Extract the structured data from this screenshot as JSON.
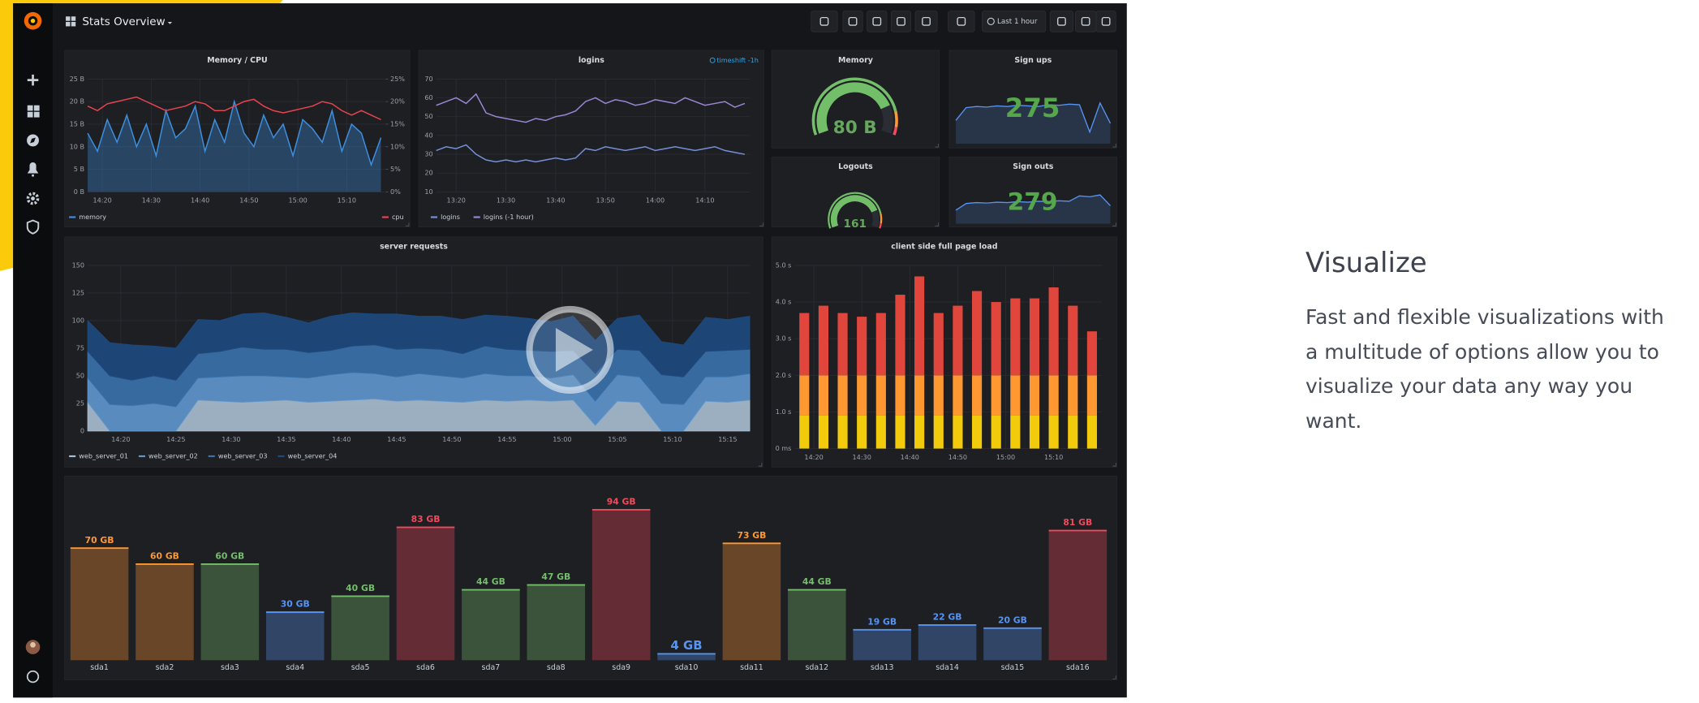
{
  "header": {
    "title": "Stats Overview",
    "time_range": "Last 1 hour"
  },
  "chart_data": [
    {
      "type": "line",
      "title": "Memory / CPU",
      "x": [
        "14:17",
        "14:19",
        "14:21",
        "14:23",
        "14:25",
        "14:27",
        "14:29",
        "14:31",
        "14:33",
        "14:35",
        "14:37",
        "14:39",
        "14:41",
        "14:43",
        "14:45",
        "14:47",
        "14:49",
        "14:51",
        "14:53",
        "14:55",
        "14:57",
        "14:59",
        "15:01",
        "15:03",
        "15:05",
        "15:07",
        "15:09",
        "15:11",
        "15:13",
        "15:15",
        "15:17"
      ],
      "xlim": [
        "14:17",
        "15:18"
      ],
      "xticks": [
        "14:20",
        "14:30",
        "14:40",
        "14:50",
        "15:00",
        "15:10"
      ],
      "ylim": [
        0,
        25
      ],
      "yticks": [
        {
          "value": 0,
          "label": "0 B"
        },
        {
          "value": 5,
          "label": "5 B"
        },
        {
          "value": 10,
          "label": "10 B"
        },
        {
          "value": 15,
          "label": "15 B"
        },
        {
          "value": 20,
          "label": "20 B"
        },
        {
          "value": 25,
          "label": "25 B"
        }
      ],
      "y2lim": [
        0,
        25
      ],
      "y2ticks": [
        {
          "value": 0,
          "label": "0%"
        },
        {
          "value": 5,
          "label": "5%"
        },
        {
          "value": 10,
          "label": "10%"
        },
        {
          "value": 15,
          "label": "15%"
        },
        {
          "value": 20,
          "label": "20%"
        },
        {
          "value": 25,
          "label": "25%"
        }
      ],
      "series": [
        {
          "name": "memory",
          "color": "#3d8fe0",
          "fill": true,
          "values": [
            13,
            9,
            16,
            11,
            17,
            10,
            15,
            8,
            18,
            12,
            14,
            19,
            9,
            16,
            11,
            20,
            13,
            10,
            17,
            12,
            15,
            8,
            16,
            14,
            11,
            18,
            9,
            15,
            13,
            6,
            12
          ]
        },
        {
          "name": "cpu",
          "color": "#e8434f",
          "axis": "y2",
          "values": [
            19,
            18,
            19.5,
            20,
            20.5,
            21,
            20,
            19,
            18,
            18.5,
            19,
            20,
            19.5,
            18,
            18,
            19,
            20,
            20.5,
            19,
            18,
            17.5,
            18,
            18.5,
            19,
            20,
            19.5,
            18,
            17,
            18,
            17,
            16
          ]
        }
      ]
    },
    {
      "type": "line",
      "title": "logins",
      "annotation": "timeshift -1h",
      "x": [
        "13:16",
        "13:18",
        "13:20",
        "13:22",
        "13:24",
        "13:26",
        "13:28",
        "13:30",
        "13:32",
        "13:34",
        "13:36",
        "13:38",
        "13:40",
        "13:42",
        "13:44",
        "13:46",
        "13:48",
        "13:50",
        "13:52",
        "13:54",
        "13:56",
        "13:58",
        "14:00",
        "14:02",
        "14:04",
        "14:06",
        "14:08",
        "14:10",
        "14:12",
        "14:14",
        "14:16",
        "14:18"
      ],
      "xlim": [
        "13:16",
        "14:19"
      ],
      "xticks": [
        "13:20",
        "13:30",
        "13:40",
        "13:50",
        "14:00",
        "14:10"
      ],
      "ylim": [
        10,
        70
      ],
      "yticks": [
        10,
        20,
        30,
        40,
        50,
        60,
        70
      ],
      "series": [
        {
          "name": "logins",
          "color": "#7590d8",
          "values": [
            32,
            34,
            33,
            35,
            30,
            27,
            26,
            27,
            26,
            27,
            26,
            27,
            28,
            27,
            28,
            33,
            32,
            34,
            33,
            32,
            33,
            34,
            32,
            33,
            34,
            33,
            32,
            33,
            34,
            32,
            31,
            30
          ]
        },
        {
          "name": "logins (-1 hour)",
          "color": "#9a86d4",
          "values": [
            56,
            58,
            60,
            57,
            62,
            52,
            50,
            49,
            48,
            47,
            49,
            48,
            50,
            51,
            53,
            58,
            60,
            57,
            59,
            58,
            56,
            57,
            59,
            58,
            57,
            60,
            58,
            56,
            57,
            58,
            55,
            57
          ]
        }
      ]
    },
    {
      "type": "gauge",
      "title": "Memory",
      "value": 80,
      "value_label": "80 B",
      "range": [
        0,
        100
      ],
      "thresholds": [
        {
          "value": 0,
          "color": "#73bf69"
        },
        {
          "value": 85,
          "color": "#ff9830"
        },
        {
          "value": 95,
          "color": "#f2495c"
        }
      ]
    },
    {
      "type": "stat",
      "title": "Sign ups",
      "value": 275,
      "color": "#56a64b",
      "spark_color": "#5794f2",
      "ylim": [
        0,
        100
      ],
      "sparkline": [
        40,
        62,
        64,
        63,
        65,
        64,
        66,
        65,
        64,
        67,
        66,
        68,
        67,
        20,
        70,
        35
      ]
    },
    {
      "type": "gauge",
      "title": "Logouts",
      "value": 161,
      "range": [
        0,
        200
      ],
      "thresholds": [
        {
          "value": 0,
          "color": "#73bf69"
        },
        {
          "value": 170,
          "color": "#ff9830"
        },
        {
          "value": 190,
          "color": "#f2495c"
        }
      ]
    },
    {
      "type": "stat",
      "title": "Sign outs",
      "value": 279,
      "color": "#56a64b",
      "spark_color": "#5794f2",
      "ylim": [
        0,
        100
      ],
      "sparkline": [
        30,
        45,
        47,
        46,
        48,
        47,
        49,
        48,
        50,
        49,
        51,
        50,
        62,
        60,
        64,
        40
      ]
    },
    {
      "type": "area",
      "title": "server requests",
      "x": [
        "14:17",
        "14:19",
        "14:21",
        "14:23",
        "14:25",
        "14:27",
        "14:29",
        "14:31",
        "14:33",
        "14:35",
        "14:37",
        "14:39",
        "14:41",
        "14:43",
        "14:45",
        "14:47",
        "14:49",
        "14:51",
        "14:53",
        "14:55",
        "14:57",
        "14:59",
        "15:01",
        "15:03",
        "15:05",
        "15:07",
        "15:09",
        "15:11",
        "15:13",
        "15:15",
        "15:17"
      ],
      "xlim": [
        "14:17",
        "15:17"
      ],
      "xticks": [
        "14:20",
        "14:25",
        "14:30",
        "14:35",
        "14:40",
        "14:45",
        "14:50",
        "14:55",
        "15:00",
        "15:05",
        "15:10",
        "15:15"
      ],
      "ylim": [
        0,
        150
      ],
      "yticks": [
        0,
        25,
        50,
        75,
        100,
        125,
        150
      ],
      "series": [
        {
          "name": "web_server_01",
          "color": "#a9bfd3",
          "values": [
            26,
            0,
            0,
            0,
            0,
            28,
            27,
            26,
            27,
            28,
            26,
            27,
            28,
            29,
            27,
            28,
            27,
            26,
            28,
            27,
            28,
            27,
            28,
            5,
            27,
            26,
            0,
            0,
            27,
            26,
            28
          ]
        },
        {
          "name": "web_server_02",
          "color": "#5f97cf",
          "values": [
            22,
            24,
            23,
            25,
            22,
            20,
            22,
            24,
            23,
            21,
            22,
            24,
            25,
            23,
            22,
            24,
            23,
            22,
            24,
            23,
            22,
            21,
            23,
            22,
            24,
            23,
            25,
            24,
            22,
            23,
            24
          ]
        },
        {
          "name": "web_server_03",
          "color": "#3a72ad",
          "values": [
            24,
            26,
            23,
            25,
            24,
            22,
            23,
            26,
            24,
            25,
            23,
            22,
            24,
            26,
            25,
            23,
            24,
            22,
            25,
            24,
            23,
            24,
            22,
            25,
            23,
            24,
            26,
            25,
            23,
            24,
            22
          ]
        },
        {
          "name": "web_server_04",
          "color": "#1d4a80",
          "values": [
            28,
            30,
            32,
            27,
            29,
            31,
            28,
            30,
            33,
            29,
            27,
            31,
            30,
            28,
            32,
            29,
            30,
            31,
            28,
            30,
            29,
            27,
            31,
            30,
            28,
            32,
            30,
            29,
            31,
            28,
            30
          ]
        }
      ]
    },
    {
      "type": "bar",
      "title": "client side full page load",
      "x": [
        "14:18",
        "14:22",
        "14:26",
        "14:30",
        "14:34",
        "14:38",
        "14:42",
        "14:46",
        "14:50",
        "14:54",
        "14:58",
        "15:02",
        "15:06",
        "15:10",
        "15:14",
        "15:18"
      ],
      "xlim": [
        "14:16",
        "15:20"
      ],
      "xticks": [
        "14:20",
        "14:30",
        "14:40",
        "14:50",
        "15:00",
        "15:10"
      ],
      "ylim": [
        0,
        5
      ],
      "yticks": [
        {
          "value": 0,
          "label": "0 ms"
        },
        {
          "value": 1,
          "label": "1.0 s"
        },
        {
          "value": 2,
          "label": "2.0 s"
        },
        {
          "value": 3,
          "label": "3.0 s"
        },
        {
          "value": 4,
          "label": "4.0 s"
        },
        {
          "value": 5,
          "label": "5.0 s"
        }
      ],
      "series": [
        {
          "color": "#f2cc0c",
          "values": [
            0.9,
            0.9,
            0.9,
            0.9,
            0.9,
            0.9,
            0.9,
            0.9,
            0.9,
            0.9,
            0.9,
            0.9,
            0.9,
            0.9,
            0.9,
            0.9
          ]
        },
        {
          "color": "#ff9830",
          "values": [
            1.1,
            1.1,
            1.1,
            1.1,
            1.1,
            1.1,
            1.1,
            1.1,
            1.1,
            1.1,
            1.1,
            1.1,
            1.1,
            1.1,
            1.1,
            1.1
          ]
        },
        {
          "color": "#e0463c",
          "values": [
            1.7,
            1.9,
            1.7,
            1.6,
            1.7,
            2.2,
            2.7,
            1.7,
            1.9,
            2.3,
            2.0,
            2.1,
            2.1,
            2.4,
            1.9,
            1.2
          ]
        }
      ]
    },
    {
      "type": "bar",
      "categories": [
        "sda1",
        "sda2",
        "sda3",
        "sda4",
        "sda5",
        "sda6",
        "sda7",
        "sda8",
        "sda9",
        "sda10",
        "sda11",
        "sda12",
        "sda13",
        "sda14",
        "sda15",
        "sda16"
      ],
      "values": [
        70,
        60,
        60,
        30,
        40,
        83,
        44,
        47,
        94,
        4,
        73,
        44,
        19,
        22,
        20,
        81
      ],
      "value_labels": [
        "70 GB",
        "60 GB",
        "60 GB",
        "30 GB",
        "40 GB",
        "83 GB",
        "44 GB",
        "47 GB",
        "94 GB",
        "4 GB",
        "73 GB",
        "44 GB",
        "19 GB",
        "22 GB",
        "20 GB",
        "81 GB"
      ],
      "colors": [
        "#ff9830",
        "#ff9830",
        "#73bf69",
        "#5794f2",
        "#73bf69",
        "#f2495c",
        "#73bf69",
        "#73bf69",
        "#f2495c",
        "#5794f2",
        "#ff9830",
        "#73bf69",
        "#5794f2",
        "#5794f2",
        "#5794f2",
        "#f2495c"
      ],
      "ylim": [
        0,
        100
      ]
    }
  ],
  "feature": {
    "title": "Visualize",
    "body": [
      "Fast and flexible visualizations with",
      "a multitude of options allow you to",
      "visualize your data any way you",
      "want."
    ]
  }
}
